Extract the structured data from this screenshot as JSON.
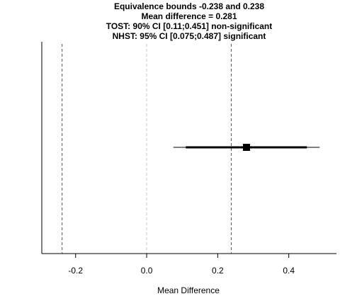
{
  "chart_data": {
    "type": "forest",
    "title_lines": [
      "Equivalence bounds -0.238 and 0.238",
      "Mean difference = 0.281",
      "TOST: 90% CI [0.11;0.451] non-significant",
      "NHST: 95% CI [0.075;0.487] significant"
    ],
    "xlabel": "Mean Difference",
    "ylabel": "",
    "xlim": [
      -0.2952,
      0.5342
    ],
    "x_ticks": [
      -0.2,
      0.0,
      0.2,
      0.4
    ],
    "x_tick_labels": [
      "-0.2",
      "0.0",
      "0.2",
      "0.4"
    ],
    "equivalence_bounds": [
      -0.238,
      0.238
    ],
    "reference_line": 0,
    "mean_difference": 0.281,
    "ci_90": [
      0.11,
      0.451
    ],
    "ci_95": [
      0.075,
      0.487
    ],
    "colors": {
      "bounds": "#555555",
      "reference": "#c8c8c8",
      "estimate": "#000000"
    }
  }
}
